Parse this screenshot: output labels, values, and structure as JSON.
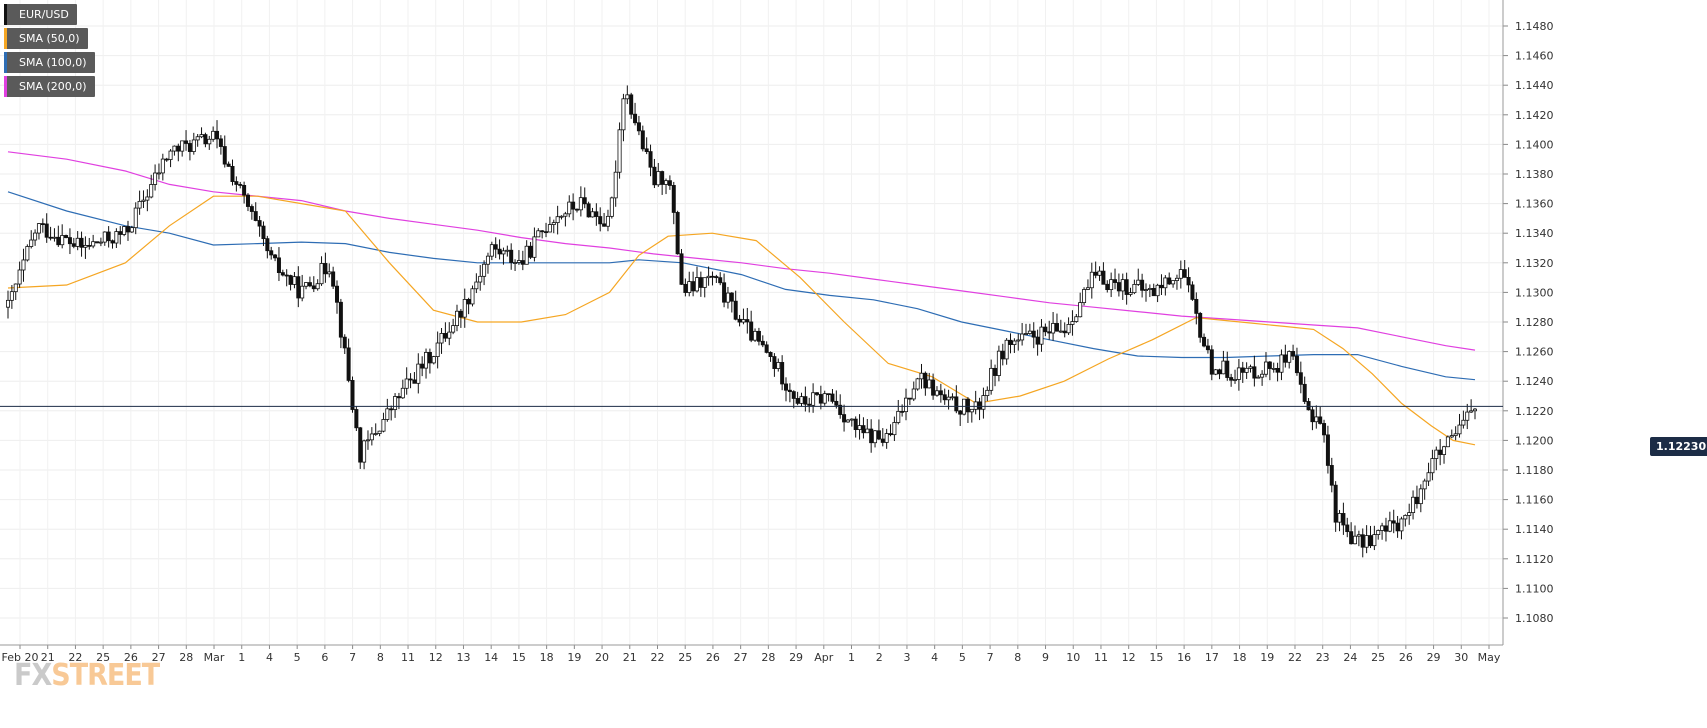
{
  "instrument": "EUR/USD",
  "legend": [
    {
      "label": "EUR/USD",
      "color": "#111111"
    },
    {
      "label": "SMA (50,0)",
      "color": "#f5a623"
    },
    {
      "label": "SMA (100,0)",
      "color": "#2e6db4"
    },
    {
      "label": "SMA (200,0)",
      "color": "#e040e0"
    }
  ],
  "watermark": {
    "part1": "FX",
    "part2": "STREET"
  },
  "chart_data": {
    "type": "candlestick",
    "y_axis": {
      "min": 1.106,
      "max": 1.15,
      "tick_labels": [
        "1.1080",
        "1.1100",
        "1.1120",
        "1.1140",
        "1.1160",
        "1.1180",
        "1.1200",
        "1.1220",
        "1.1240",
        "1.1260",
        "1.1280",
        "1.1300",
        "1.1320",
        "1.1340",
        "1.1360",
        "1.1380",
        "1.1400",
        "1.1420",
        "1.1440",
        "1.1460",
        "1.1480"
      ]
    },
    "current_price": {
      "value": 1.1223,
      "label": "1.12230"
    },
    "x_axis": {
      "labels": [
        "Feb 20",
        "21",
        "22",
        "25",
        "26",
        "27",
        "28",
        "Mar",
        "1",
        "4",
        "5",
        "6",
        "7",
        "8",
        "11",
        "12",
        "13",
        "14",
        "15",
        "18",
        "19",
        "20",
        "21",
        "22",
        "25",
        "26",
        "27",
        "28",
        "29",
        "Apr",
        "1",
        "2",
        "3",
        "4",
        "5",
        "7",
        "8",
        "9",
        "10",
        "11",
        "12",
        "15",
        "16",
        "17",
        "18",
        "19",
        "22",
        "23",
        "24",
        "25",
        "26",
        "29",
        "30",
        "May"
      ]
    },
    "series": [
      {
        "name": "EUR/USD",
        "type": "candles",
        "color": "#111111",
        "anchors": [
          {
            "t": 0.0,
            "p": 1.129
          },
          {
            "t": 0.02,
            "p": 1.1345
          },
          {
            "t": 0.05,
            "p": 1.133
          },
          {
            "t": 0.08,
            "p": 1.134
          },
          {
            "t": 0.11,
            "p": 1.1395
          },
          {
            "t": 0.14,
            "p": 1.1405
          },
          {
            "t": 0.16,
            "p": 1.1365
          },
          {
            "t": 0.18,
            "p": 1.132
          },
          {
            "t": 0.2,
            "p": 1.13
          },
          {
            "t": 0.22,
            "p": 1.132
          },
          {
            "t": 0.24,
            "p": 1.119
          },
          {
            "t": 0.27,
            "p": 1.1235
          },
          {
            "t": 0.29,
            "p": 1.126
          },
          {
            "t": 0.31,
            "p": 1.129
          },
          {
            "t": 0.33,
            "p": 1.133
          },
          {
            "t": 0.35,
            "p": 1.132
          },
          {
            "t": 0.37,
            "p": 1.135
          },
          {
            "t": 0.39,
            "p": 1.136
          },
          {
            "t": 0.41,
            "p": 1.1345
          },
          {
            "t": 0.42,
            "p": 1.144
          },
          {
            "t": 0.44,
            "p": 1.1375
          },
          {
            "t": 0.45,
            "p": 1.138
          },
          {
            "t": 0.46,
            "p": 1.13
          },
          {
            "t": 0.48,
            "p": 1.131
          },
          {
            "t": 0.5,
            "p": 1.128
          },
          {
            "t": 0.52,
            "p": 1.1255
          },
          {
            "t": 0.54,
            "p": 1.1225
          },
          {
            "t": 0.56,
            "p": 1.123
          },
          {
            "t": 0.58,
            "p": 1.1205
          },
          {
            "t": 0.6,
            "p": 1.12
          },
          {
            "t": 0.62,
            "p": 1.1245
          },
          {
            "t": 0.64,
            "p": 1.1225
          },
          {
            "t": 0.66,
            "p": 1.122
          },
          {
            "t": 0.68,
            "p": 1.1265
          },
          {
            "t": 0.7,
            "p": 1.127
          },
          {
            "t": 0.72,
            "p": 1.1275
          },
          {
            "t": 0.74,
            "p": 1.131
          },
          {
            "t": 0.76,
            "p": 1.1305
          },
          {
            "t": 0.78,
            "p": 1.13
          },
          {
            "t": 0.8,
            "p": 1.1315
          },
          {
            "t": 0.82,
            "p": 1.125
          },
          {
            "t": 0.84,
            "p": 1.1245
          },
          {
            "t": 0.86,
            "p": 1.125
          },
          {
            "t": 0.875,
            "p": 1.1255
          },
          {
            "t": 0.885,
            "p": 1.122
          },
          {
            "t": 0.895,
            "p": 1.1215
          },
          {
            "t": 0.905,
            "p": 1.115
          },
          {
            "t": 0.92,
            "p": 1.113
          },
          {
            "t": 0.94,
            "p": 1.114
          },
          {
            "t": 0.955,
            "p": 1.115
          },
          {
            "t": 0.97,
            "p": 1.1185
          },
          {
            "t": 0.985,
            "p": 1.12
          },
          {
            "t": 1.0,
            "p": 1.1223
          }
        ]
      },
      {
        "name": "SMA (50,0)",
        "type": "line",
        "color": "#f5a623",
        "points": [
          {
            "t": 0.0,
            "p": 1.1303
          },
          {
            "t": 0.04,
            "p": 1.1305
          },
          {
            "t": 0.08,
            "p": 1.132
          },
          {
            "t": 0.11,
            "p": 1.1345
          },
          {
            "t": 0.14,
            "p": 1.1365
          },
          {
            "t": 0.17,
            "p": 1.1365
          },
          {
            "t": 0.2,
            "p": 1.136
          },
          {
            "t": 0.23,
            "p": 1.1355
          },
          {
            "t": 0.26,
            "p": 1.132
          },
          {
            "t": 0.29,
            "p": 1.1288
          },
          {
            "t": 0.32,
            "p": 1.128
          },
          {
            "t": 0.35,
            "p": 1.128
          },
          {
            "t": 0.38,
            "p": 1.1285
          },
          {
            "t": 0.41,
            "p": 1.13
          },
          {
            "t": 0.43,
            "p": 1.1325
          },
          {
            "t": 0.45,
            "p": 1.1338
          },
          {
            "t": 0.48,
            "p": 1.134
          },
          {
            "t": 0.51,
            "p": 1.1335
          },
          {
            "t": 0.54,
            "p": 1.131
          },
          {
            "t": 0.57,
            "p": 1.128
          },
          {
            "t": 0.6,
            "p": 1.1252
          },
          {
            "t": 0.63,
            "p": 1.1243
          },
          {
            "t": 0.66,
            "p": 1.1225
          },
          {
            "t": 0.69,
            "p": 1.123
          },
          {
            "t": 0.72,
            "p": 1.124
          },
          {
            "t": 0.75,
            "p": 1.1255
          },
          {
            "t": 0.78,
            "p": 1.1268
          },
          {
            "t": 0.81,
            "p": 1.1283
          },
          {
            "t": 0.84,
            "p": 1.128
          },
          {
            "t": 0.87,
            "p": 1.1277
          },
          {
            "t": 0.89,
            "p": 1.1275
          },
          {
            "t": 0.91,
            "p": 1.1262
          },
          {
            "t": 0.93,
            "p": 1.1245
          },
          {
            "t": 0.95,
            "p": 1.1225
          },
          {
            "t": 0.97,
            "p": 1.121
          },
          {
            "t": 0.985,
            "p": 1.12
          },
          {
            "t": 1.0,
            "p": 1.1197
          }
        ]
      },
      {
        "name": "SMA (100,0)",
        "type": "line",
        "color": "#2e6db4",
        "points": [
          {
            "t": 0.0,
            "p": 1.1368
          },
          {
            "t": 0.04,
            "p": 1.1355
          },
          {
            "t": 0.08,
            "p": 1.1345
          },
          {
            "t": 0.11,
            "p": 1.134
          },
          {
            "t": 0.14,
            "p": 1.1332
          },
          {
            "t": 0.17,
            "p": 1.1333
          },
          {
            "t": 0.2,
            "p": 1.1334
          },
          {
            "t": 0.23,
            "p": 1.1333
          },
          {
            "t": 0.26,
            "p": 1.1327
          },
          {
            "t": 0.29,
            "p": 1.1323
          },
          {
            "t": 0.32,
            "p": 1.132
          },
          {
            "t": 0.35,
            "p": 1.132
          },
          {
            "t": 0.38,
            "p": 1.132
          },
          {
            "t": 0.41,
            "p": 1.132
          },
          {
            "t": 0.43,
            "p": 1.1322
          },
          {
            "t": 0.46,
            "p": 1.132
          },
          {
            "t": 0.5,
            "p": 1.1312
          },
          {
            "t": 0.53,
            "p": 1.1302
          },
          {
            "t": 0.56,
            "p": 1.1298
          },
          {
            "t": 0.59,
            "p": 1.1295
          },
          {
            "t": 0.62,
            "p": 1.1289
          },
          {
            "t": 0.65,
            "p": 1.128
          },
          {
            "t": 0.68,
            "p": 1.1274
          },
          {
            "t": 0.71,
            "p": 1.1268
          },
          {
            "t": 0.74,
            "p": 1.1262
          },
          {
            "t": 0.77,
            "p": 1.1257
          },
          {
            "t": 0.8,
            "p": 1.1256
          },
          {
            "t": 0.83,
            "p": 1.1256
          },
          {
            "t": 0.86,
            "p": 1.1257
          },
          {
            "t": 0.89,
            "p": 1.1258
          },
          {
            "t": 0.92,
            "p": 1.1258
          },
          {
            "t": 0.95,
            "p": 1.125
          },
          {
            "t": 0.98,
            "p": 1.1243
          },
          {
            "t": 1.0,
            "p": 1.1241
          }
        ]
      },
      {
        "name": "SMA (200,0)",
        "type": "line",
        "color": "#e040e0",
        "points": [
          {
            "t": 0.0,
            "p": 1.1395
          },
          {
            "t": 0.04,
            "p": 1.139
          },
          {
            "t": 0.08,
            "p": 1.1382
          },
          {
            "t": 0.11,
            "p": 1.1373
          },
          {
            "t": 0.14,
            "p": 1.1368
          },
          {
            "t": 0.17,
            "p": 1.1365
          },
          {
            "t": 0.2,
            "p": 1.1362
          },
          {
            "t": 0.23,
            "p": 1.1355
          },
          {
            "t": 0.26,
            "p": 1.135
          },
          {
            "t": 0.29,
            "p": 1.1346
          },
          {
            "t": 0.32,
            "p": 1.1342
          },
          {
            "t": 0.35,
            "p": 1.1337
          },
          {
            "t": 0.38,
            "p": 1.1333
          },
          {
            "t": 0.41,
            "p": 1.133
          },
          {
            "t": 0.44,
            "p": 1.1326
          },
          {
            "t": 0.47,
            "p": 1.1323
          },
          {
            "t": 0.5,
            "p": 1.132
          },
          {
            "t": 0.53,
            "p": 1.1316
          },
          {
            "t": 0.56,
            "p": 1.1313
          },
          {
            "t": 0.59,
            "p": 1.1309
          },
          {
            "t": 0.62,
            "p": 1.1305
          },
          {
            "t": 0.65,
            "p": 1.1301
          },
          {
            "t": 0.68,
            "p": 1.1297
          },
          {
            "t": 0.71,
            "p": 1.1293
          },
          {
            "t": 0.74,
            "p": 1.129
          },
          {
            "t": 0.77,
            "p": 1.1287
          },
          {
            "t": 0.8,
            "p": 1.1284
          },
          {
            "t": 0.83,
            "p": 1.1282
          },
          {
            "t": 0.86,
            "p": 1.128
          },
          {
            "t": 0.89,
            "p": 1.1278
          },
          {
            "t": 0.92,
            "p": 1.1276
          },
          {
            "t": 0.95,
            "p": 1.127
          },
          {
            "t": 0.98,
            "p": 1.1264
          },
          {
            "t": 1.0,
            "p": 1.1261
          }
        ]
      }
    ]
  }
}
